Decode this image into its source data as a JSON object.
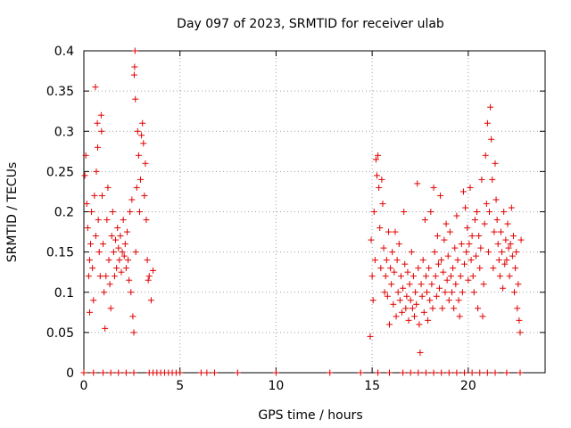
{
  "chart_data": {
    "type": "scatter",
    "title": "Day 097 of 2023, SRMTID for receiver ulab",
    "xlabel": "GPS time / hours",
    "ylabel": "SRMTID / TECUs",
    "xlim": [
      0,
      24
    ],
    "ylim": [
      0,
      0.4
    ],
    "xticks": [
      0,
      5,
      10,
      15,
      20
    ],
    "xtick_labels": [
      "0",
      "5",
      "10",
      "15",
      "20"
    ],
    "yticks": [
      0,
      0.05,
      0.1,
      0.15,
      0.2,
      0.25,
      0.3,
      0.35,
      0.4
    ],
    "ytick_labels": [
      "0",
      "0.05",
      "0.1",
      "0.15",
      "0.2",
      "0.25",
      "0.3",
      "0.35",
      "0.4"
    ],
    "grid": true,
    "marker": "+",
    "colors": {
      "points": "#e00000",
      "grid": "#a0a0a0",
      "axis": "#000000"
    },
    "series": [
      {
        "name": "SRMTID",
        "points": [
          [
            0.05,
            0.245
          ],
          [
            0.1,
            0.27
          ],
          [
            0.15,
            0.21
          ],
          [
            0.2,
            0.18
          ],
          [
            0.25,
            0.12
          ],
          [
            0.3,
            0.14
          ],
          [
            0.3,
            0.075
          ],
          [
            0.35,
            0.16
          ],
          [
            0.4,
            0.2
          ],
          [
            0.45,
            0.13
          ],
          [
            0.5,
            0.09
          ],
          [
            0.55,
            0.22
          ],
          [
            0.6,
            0.355
          ],
          [
            0.62,
            0.17
          ],
          [
            0.65,
            0.25
          ],
          [
            0.7,
            0.31
          ],
          [
            0.72,
            0.28
          ],
          [
            0.75,
            0.19
          ],
          [
            0.8,
            0.15
          ],
          [
            0.85,
            0.12
          ],
          [
            0.9,
            0.32
          ],
          [
            0.92,
            0.3
          ],
          [
            0.95,
            0.22
          ],
          [
            1.0,
            0.16
          ],
          [
            1.05,
            0.1
          ],
          [
            1.1,
            0.055
          ],
          [
            1.15,
            0.12
          ],
          [
            1.2,
            0.19
          ],
          [
            1.25,
            0.23
          ],
          [
            1.3,
            0.14
          ],
          [
            1.35,
            0.11
          ],
          [
            1.4,
            0.08
          ],
          [
            1.45,
            0.17
          ],
          [
            1.5,
            0.2
          ],
          [
            1.55,
            0.15
          ],
          [
            1.6,
            0.12
          ],
          [
            1.65,
            0.165
          ],
          [
            1.7,
            0.13
          ],
          [
            1.75,
            0.18
          ],
          [
            1.8,
            0.155
          ],
          [
            1.85,
            0.14
          ],
          [
            1.9,
            0.17
          ],
          [
            1.95,
            0.125
          ],
          [
            2.0,
            0.15
          ],
          [
            2.05,
            0.19
          ],
          [
            2.1,
            0.145
          ],
          [
            2.15,
            0.16
          ],
          [
            2.2,
            0.13
          ],
          [
            2.25,
            0.175
          ],
          [
            2.3,
            0.14
          ],
          [
            2.35,
            0.115
          ],
          [
            2.4,
            0.2
          ],
          [
            2.45,
            0.1
          ],
          [
            2.5,
            0.215
          ],
          [
            2.55,
            0.07
          ],
          [
            2.6,
            0.05
          ],
          [
            2.62,
            0.37
          ],
          [
            2.64,
            0.38
          ],
          [
            2.66,
            0.4
          ],
          [
            2.68,
            0.34
          ],
          [
            2.7,
            0.15
          ],
          [
            2.75,
            0.23
          ],
          [
            2.8,
            0.3
          ],
          [
            2.85,
            0.27
          ],
          [
            2.9,
            0.2
          ],
          [
            2.95,
            0.24
          ],
          [
            3.0,
            0.295
          ],
          [
            3.05,
            0.31
          ],
          [
            3.1,
            0.285
          ],
          [
            3.15,
            0.22
          ],
          [
            3.2,
            0.26
          ],
          [
            3.25,
            0.19
          ],
          [
            3.3,
            0.14
          ],
          [
            3.35,
            0.115
          ],
          [
            3.4,
            0.12
          ],
          [
            3.5,
            0.09
          ],
          [
            3.6,
            0.127
          ],
          [
            0.0,
            0.0
          ],
          [
            0.5,
            0.0
          ],
          [
            1.0,
            0.0
          ],
          [
            1.4,
            0.0
          ],
          [
            1.8,
            0.0
          ],
          [
            2.2,
            0.0
          ],
          [
            2.6,
            0.0
          ],
          [
            3.4,
            0.0
          ],
          [
            3.6,
            0.0
          ],
          [
            3.8,
            0.0
          ],
          [
            4.0,
            0.0
          ],
          [
            4.2,
            0.0
          ],
          [
            4.4,
            0.0
          ],
          [
            4.6,
            0.0
          ],
          [
            4.8,
            0.0
          ],
          [
            5.0,
            0.0
          ],
          [
            6.1,
            0.0
          ],
          [
            6.4,
            0.0
          ],
          [
            6.8,
            0.0
          ],
          [
            8.0,
            0.0
          ],
          [
            10.0,
            0.0
          ],
          [
            12.8,
            0.0
          ],
          [
            14.4,
            0.0
          ],
          [
            15.3,
            0.0
          ],
          [
            15.9,
            0.0
          ],
          [
            16.6,
            0.0
          ],
          [
            17.0,
            0.0
          ],
          [
            17.4,
            0.0
          ],
          [
            17.8,
            0.0
          ],
          [
            18.2,
            0.0
          ],
          [
            18.6,
            0.0
          ],
          [
            19.0,
            0.0
          ],
          [
            19.4,
            0.0
          ],
          [
            19.8,
            0.0
          ],
          [
            20.2,
            0.0
          ],
          [
            20.6,
            0.0
          ],
          [
            21.0,
            0.0
          ],
          [
            21.4,
            0.0
          ],
          [
            22.0,
            0.0
          ],
          [
            22.7,
            0.0
          ],
          [
            14.9,
            0.045
          ],
          [
            14.95,
            0.165
          ],
          [
            15.0,
            0.12
          ],
          [
            15.05,
            0.09
          ],
          [
            15.1,
            0.2
          ],
          [
            15.15,
            0.14
          ],
          [
            15.2,
            0.265
          ],
          [
            15.25,
            0.245
          ],
          [
            15.3,
            0.27
          ],
          [
            15.35,
            0.23
          ],
          [
            15.4,
            0.18
          ],
          [
            15.45,
            0.13
          ],
          [
            15.5,
            0.24
          ],
          [
            15.55,
            0.21
          ],
          [
            15.6,
            0.155
          ],
          [
            15.65,
            0.1
          ],
          [
            15.7,
            0.12
          ],
          [
            15.75,
            0.14
          ],
          [
            15.8,
            0.095
          ],
          [
            15.85,
            0.175
          ],
          [
            15.9,
            0.06
          ],
          [
            15.95,
            0.13
          ],
          [
            16.0,
            0.11
          ],
          [
            16.05,
            0.15
          ],
          [
            16.1,
            0.085
          ],
          [
            16.15,
            0.125
          ],
          [
            16.2,
            0.175
          ],
          [
            16.25,
            0.07
          ],
          [
            16.3,
            0.14
          ],
          [
            16.35,
            0.1
          ],
          [
            16.4,
            0.16
          ],
          [
            16.45,
            0.09
          ],
          [
            16.5,
            0.12
          ],
          [
            16.55,
            0.075
          ],
          [
            16.6,
            0.105
          ],
          [
            16.65,
            0.2
          ],
          [
            16.7,
            0.135
          ],
          [
            16.75,
            0.08
          ],
          [
            16.8,
            0.095
          ],
          [
            16.85,
            0.125
          ],
          [
            16.9,
            0.065
          ],
          [
            16.95,
            0.11
          ],
          [
            17.0,
            0.09
          ],
          [
            17.05,
            0.15
          ],
          [
            17.1,
            0.08
          ],
          [
            17.15,
            0.12
          ],
          [
            17.2,
            0.07
          ],
          [
            17.25,
            0.1
          ],
          [
            17.3,
            0.085
          ],
          [
            17.35,
            0.235
          ],
          [
            17.4,
            0.13
          ],
          [
            17.45,
            0.06
          ],
          [
            17.5,
            0.025
          ],
          [
            17.55,
            0.11
          ],
          [
            17.6,
            0.095
          ],
          [
            17.65,
            0.14
          ],
          [
            17.7,
            0.075
          ],
          [
            17.75,
            0.19
          ],
          [
            17.8,
            0.12
          ],
          [
            17.85,
            0.1
          ],
          [
            17.9,
            0.065
          ],
          [
            17.95,
            0.13
          ],
          [
            18.0,
            0.09
          ],
          [
            18.05,
            0.2
          ],
          [
            18.1,
            0.11
          ],
          [
            18.15,
            0.08
          ],
          [
            18.2,
            0.23
          ],
          [
            18.25,
            0.15
          ],
          [
            18.3,
            0.12
          ],
          [
            18.35,
            0.095
          ],
          [
            18.4,
            0.17
          ],
          [
            18.45,
            0.135
          ],
          [
            18.5,
            0.105
          ],
          [
            18.55,
            0.22
          ],
          [
            18.6,
            0.14
          ],
          [
            18.65,
            0.08
          ],
          [
            18.7,
            0.125
          ],
          [
            18.75,
            0.165
          ],
          [
            18.8,
            0.1
          ],
          [
            18.85,
            0.185
          ],
          [
            18.9,
            0.115
          ],
          [
            18.95,
            0.145
          ],
          [
            19.0,
            0.09
          ],
          [
            19.05,
            0.175
          ],
          [
            19.1,
            0.12
          ],
          [
            19.15,
            0.1
          ],
          [
            19.2,
            0.13
          ],
          [
            19.25,
            0.08
          ],
          [
            19.3,
            0.155
          ],
          [
            19.35,
            0.11
          ],
          [
            19.4,
            0.195
          ],
          [
            19.45,
            0.14
          ],
          [
            19.5,
            0.09
          ],
          [
            19.55,
            0.07
          ],
          [
            19.6,
            0.12
          ],
          [
            19.65,
            0.16
          ],
          [
            19.7,
            0.1
          ],
          [
            19.75,
            0.225
          ],
          [
            19.8,
            0.135
          ],
          [
            19.85,
            0.205
          ],
          [
            19.9,
            0.15
          ],
          [
            19.95,
            0.18
          ],
          [
            20.0,
            0.115
          ],
          [
            20.05,
            0.16
          ],
          [
            20.1,
            0.23
          ],
          [
            20.15,
            0.14
          ],
          [
            20.2,
            0.17
          ],
          [
            20.25,
            0.12
          ],
          [
            20.3,
            0.1
          ],
          [
            20.35,
            0.19
          ],
          [
            20.4,
            0.145
          ],
          [
            20.45,
            0.2
          ],
          [
            20.5,
            0.08
          ],
          [
            20.55,
            0.17
          ],
          [
            20.6,
            0.13
          ],
          [
            20.65,
            0.155
          ],
          [
            20.7,
            0.24
          ],
          [
            20.75,
            0.07
          ],
          [
            20.8,
            0.11
          ],
          [
            20.85,
            0.185
          ],
          [
            20.9,
            0.27
          ],
          [
            20.95,
            0.21
          ],
          [
            21.0,
            0.31
          ],
          [
            21.05,
            0.15
          ],
          [
            21.1,
            0.2
          ],
          [
            21.15,
            0.33
          ],
          [
            21.2,
            0.29
          ],
          [
            21.25,
            0.24
          ],
          [
            21.3,
            0.13
          ],
          [
            21.35,
            0.175
          ],
          [
            21.4,
            0.26
          ],
          [
            21.45,
            0.215
          ],
          [
            21.5,
            0.19
          ],
          [
            21.55,
            0.16
          ],
          [
            21.6,
            0.14
          ],
          [
            21.65,
            0.12
          ],
          [
            21.7,
            0.175
          ],
          [
            21.75,
            0.15
          ],
          [
            21.8,
            0.105
          ],
          [
            21.85,
            0.2
          ],
          [
            21.9,
            0.135
          ],
          [
            21.95,
            0.165
          ],
          [
            22.0,
            0.14
          ],
          [
            22.05,
            0.185
          ],
          [
            22.1,
            0.155
          ],
          [
            22.15,
            0.12
          ],
          [
            22.2,
            0.16
          ],
          [
            22.25,
            0.205
          ],
          [
            22.3,
            0.145
          ],
          [
            22.35,
            0.17
          ],
          [
            22.4,
            0.1
          ],
          [
            22.45,
            0.13
          ],
          [
            22.5,
            0.15
          ],
          [
            22.55,
            0.08
          ],
          [
            22.6,
            0.11
          ],
          [
            22.65,
            0.065
          ],
          [
            22.7,
            0.05
          ],
          [
            22.75,
            0.165
          ]
        ]
      }
    ]
  }
}
